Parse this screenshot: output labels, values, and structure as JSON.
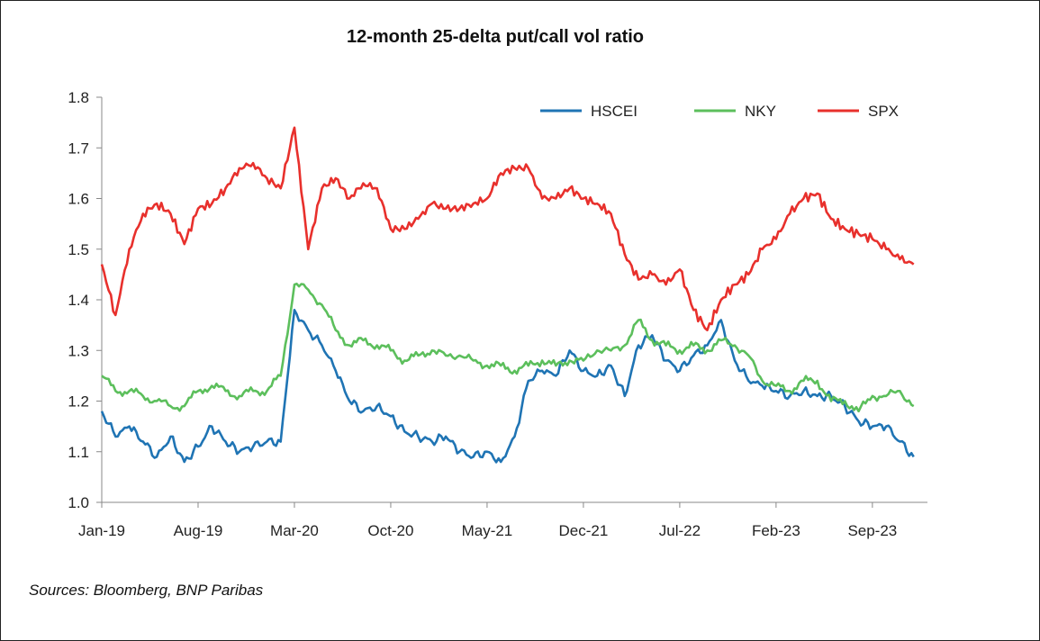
{
  "title": "12-month 25-delta put/call vol ratio",
  "source": "Sources: Bloomberg, BNP Paribas",
  "chart_data": {
    "type": "line",
    "title": "12-month 25-delta put/call vol ratio",
    "xlabel": "",
    "ylabel": "",
    "ylim": [
      1.0,
      1.8
    ],
    "yticks": [
      "1.0",
      "1.1",
      "1.2",
      "1.3",
      "1.4",
      "1.5",
      "1.6",
      "1.7",
      "1.8"
    ],
    "xticks": [
      "Jan-19",
      "Aug-19",
      "Mar-20",
      "Oct-20",
      "May-21",
      "Dec-21",
      "Jul-22",
      "Feb-23",
      "Sep-23"
    ],
    "xlim": [
      "2019-01",
      "2024-01"
    ],
    "x": [
      "2019-01",
      "2019-02",
      "2019-03",
      "2019-04",
      "2019-05",
      "2019-06",
      "2019-07",
      "2019-08",
      "2019-09",
      "2019-10",
      "2019-11",
      "2019-12",
      "2020-01",
      "2020-02",
      "2020-03",
      "2020-04",
      "2020-05",
      "2020-06",
      "2020-07",
      "2020-08",
      "2020-09",
      "2020-10",
      "2020-11",
      "2020-12",
      "2021-01",
      "2021-02",
      "2021-03",
      "2021-04",
      "2021-05",
      "2021-06",
      "2021-07",
      "2021-08",
      "2021-09",
      "2021-10",
      "2021-11",
      "2021-12",
      "2022-01",
      "2022-02",
      "2022-03",
      "2022-04",
      "2022-05",
      "2022-06",
      "2022-07",
      "2022-08",
      "2022-09",
      "2022-10",
      "2022-11",
      "2022-12",
      "2023-01",
      "2023-02",
      "2023-03",
      "2023-04",
      "2023-05",
      "2023-06",
      "2023-07",
      "2023-08",
      "2023-09",
      "2023-10",
      "2023-11",
      "2023-12"
    ],
    "grid": false,
    "legend": "top-right",
    "series": [
      {
        "name": "HSCEI",
        "color": "#1f74b4",
        "values": [
          1.18,
          1.13,
          1.15,
          1.12,
          1.09,
          1.13,
          1.08,
          1.11,
          1.15,
          1.12,
          1.1,
          1.11,
          1.12,
          1.12,
          1.38,
          1.34,
          1.31,
          1.26,
          1.2,
          1.18,
          1.19,
          1.17,
          1.14,
          1.13,
          1.12,
          1.13,
          1.1,
          1.09,
          1.1,
          1.08,
          1.13,
          1.24,
          1.26,
          1.25,
          1.3,
          1.26,
          1.25,
          1.27,
          1.21,
          1.31,
          1.33,
          1.28,
          1.26,
          1.29,
          1.31,
          1.36,
          1.28,
          1.24,
          1.23,
          1.22,
          1.21,
          1.22,
          1.21,
          1.21,
          1.19,
          1.16,
          1.15,
          1.15,
          1.12,
          1.09
        ]
      },
      {
        "name": "NKY",
        "color": "#5cbf5c",
        "values": [
          1.25,
          1.22,
          1.22,
          1.21,
          1.2,
          1.19,
          1.19,
          1.22,
          1.23,
          1.22,
          1.21,
          1.22,
          1.22,
          1.25,
          1.43,
          1.42,
          1.39,
          1.34,
          1.31,
          1.32,
          1.31,
          1.3,
          1.28,
          1.29,
          1.3,
          1.29,
          1.29,
          1.28,
          1.27,
          1.27,
          1.26,
          1.27,
          1.28,
          1.27,
          1.28,
          1.28,
          1.3,
          1.3,
          1.31,
          1.36,
          1.32,
          1.31,
          1.3,
          1.31,
          1.3,
          1.32,
          1.31,
          1.29,
          1.24,
          1.23,
          1.22,
          1.24,
          1.24,
          1.2,
          1.2,
          1.18,
          1.21,
          1.21,
          1.22,
          1.19
        ]
      },
      {
        "name": "SPX",
        "color": "#e8302c",
        "values": [
          1.47,
          1.37,
          1.5,
          1.57,
          1.59,
          1.57,
          1.51,
          1.58,
          1.59,
          1.62,
          1.66,
          1.67,
          1.64,
          1.62,
          1.74,
          1.5,
          1.62,
          1.64,
          1.6,
          1.63,
          1.62,
          1.54,
          1.54,
          1.56,
          1.59,
          1.58,
          1.58,
          1.59,
          1.6,
          1.65,
          1.66,
          1.66,
          1.6,
          1.6,
          1.62,
          1.6,
          1.59,
          1.57,
          1.49,
          1.44,
          1.45,
          1.43,
          1.46,
          1.38,
          1.34,
          1.4,
          1.43,
          1.45,
          1.5,
          1.52,
          1.57,
          1.6,
          1.61,
          1.56,
          1.54,
          1.53,
          1.52,
          1.5,
          1.48,
          1.47
        ]
      }
    ]
  }
}
